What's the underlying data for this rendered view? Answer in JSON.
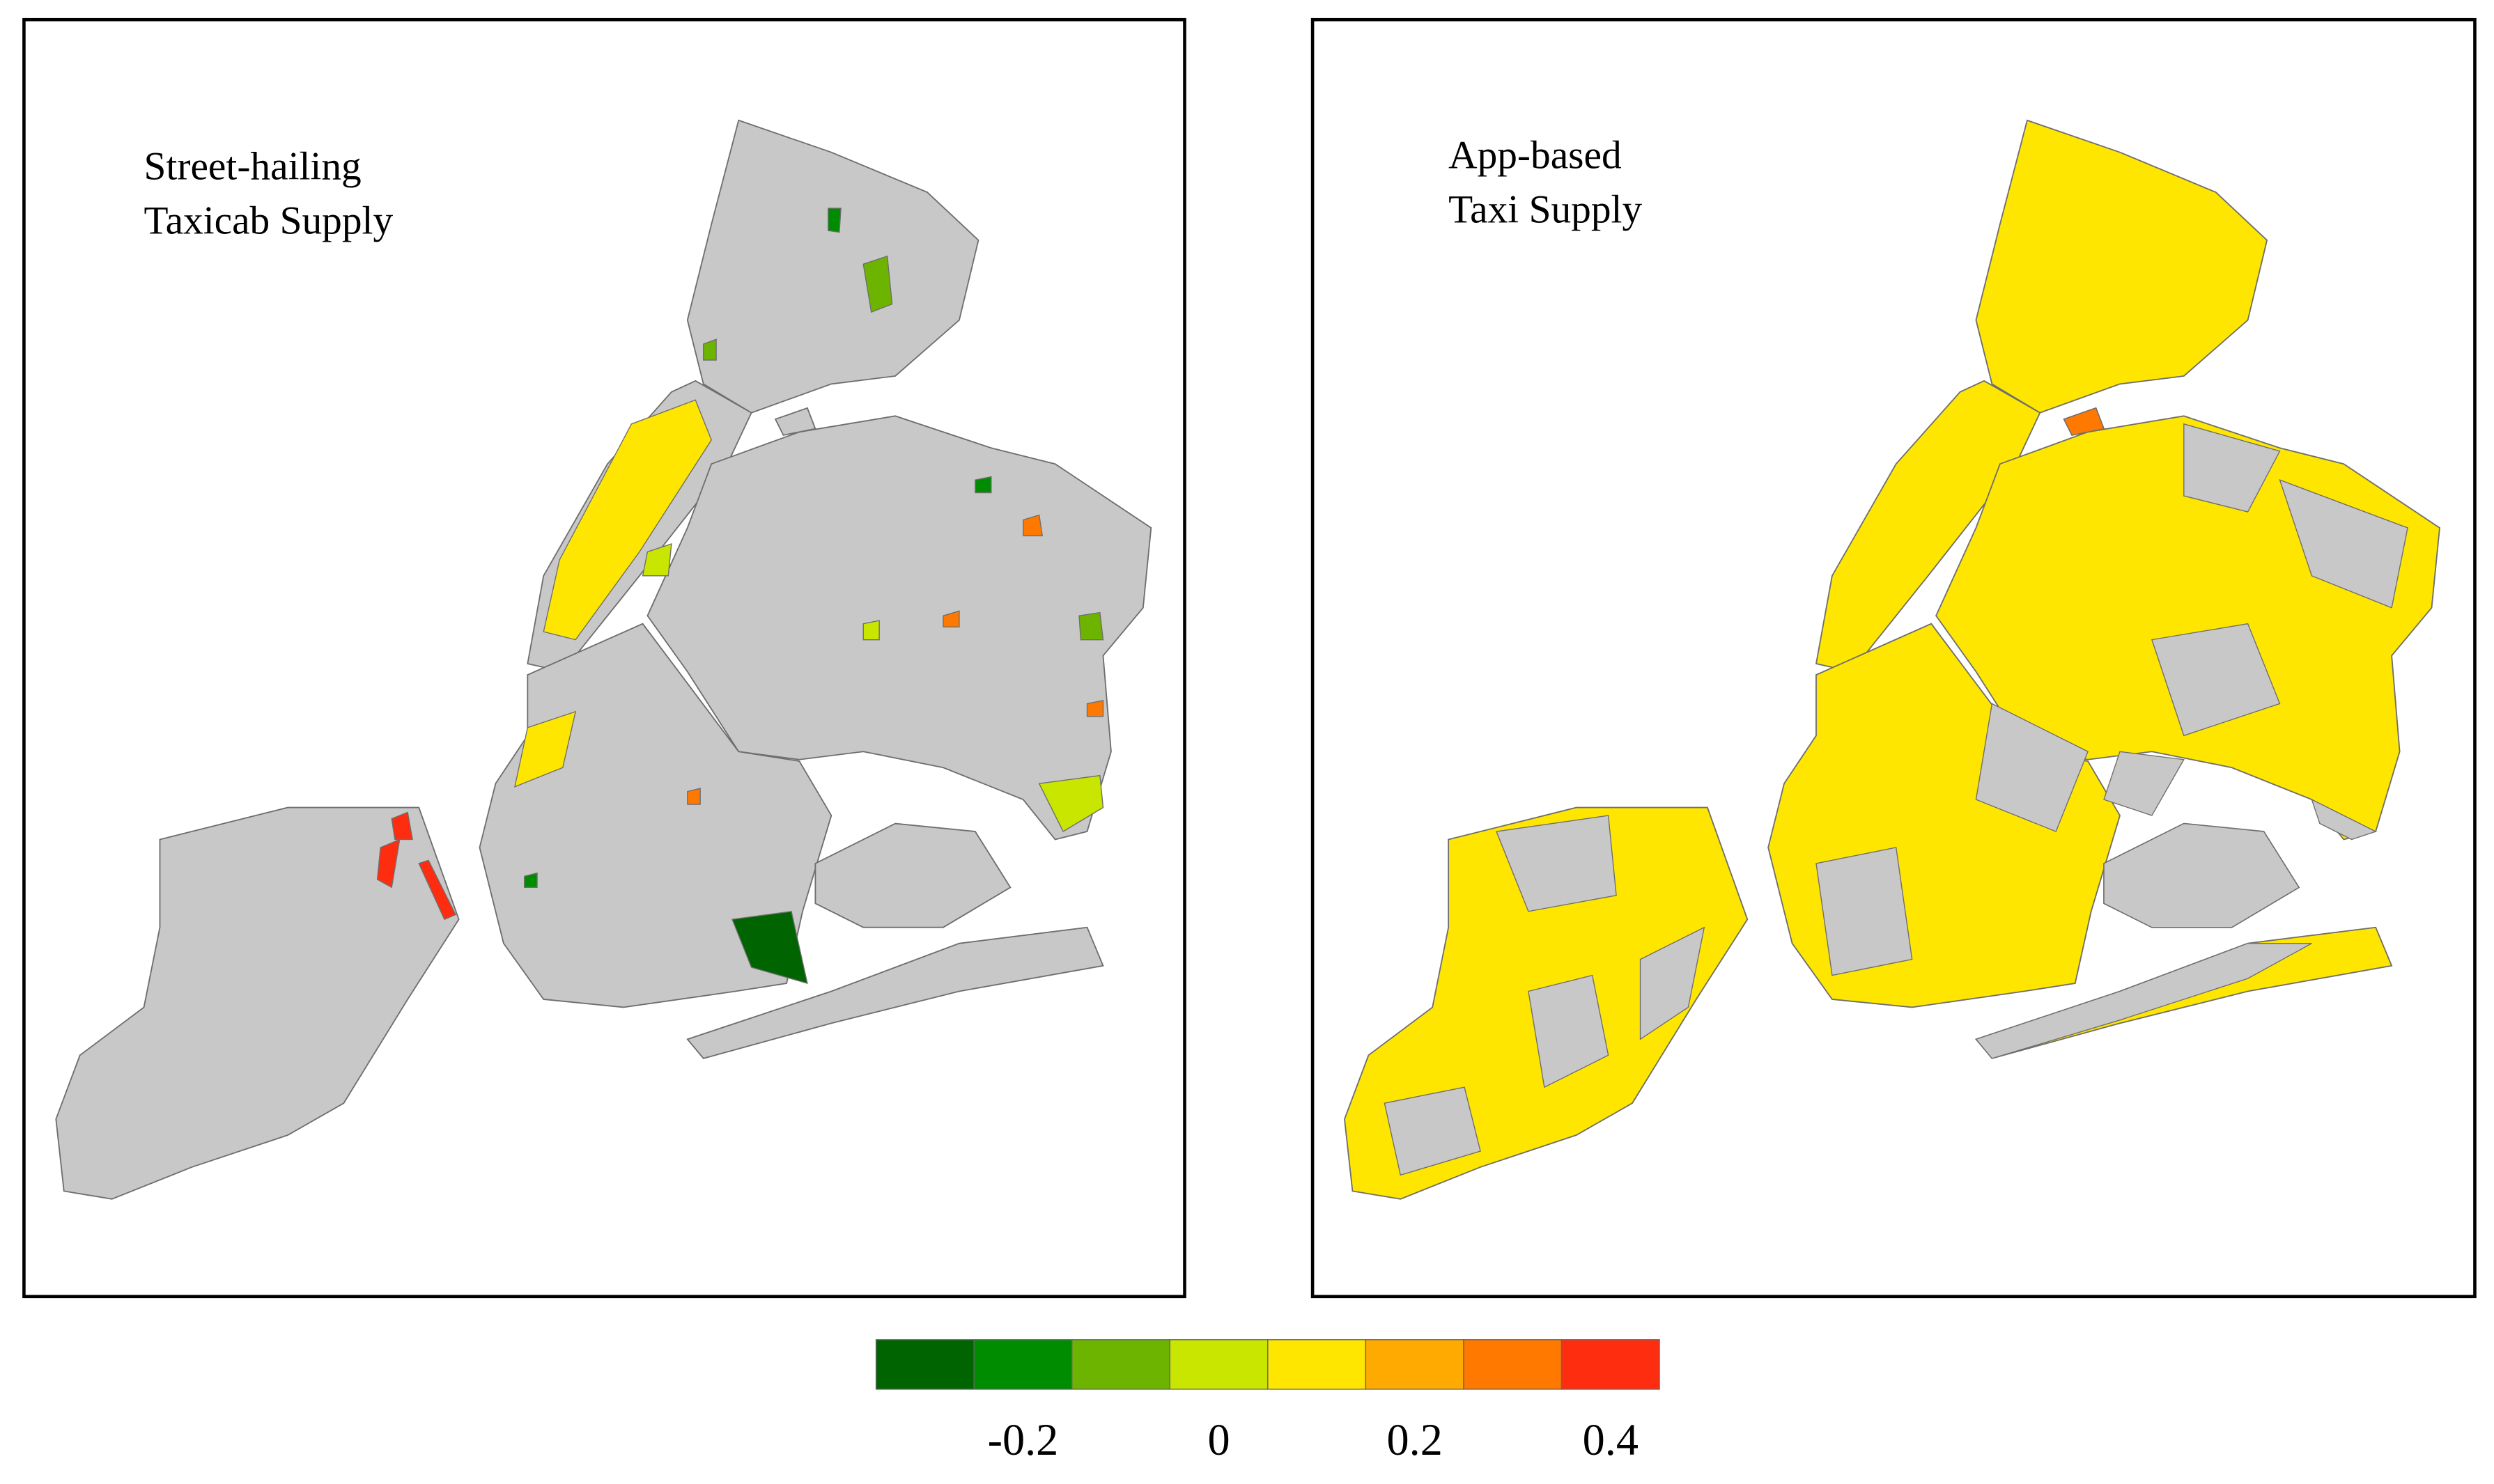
{
  "panels": [
    {
      "title": [
        "Street-hailing",
        "Taxicab Supply"
      ]
    },
    {
      "title": [
        "App-based",
        "Taxi Supply"
      ]
    }
  ],
  "colorbar": {
    "colors": [
      "#006400",
      "#008c00",
      "#6cb400",
      "#c8e600",
      "#ffe600",
      "#ffaa00",
      "#ff7800",
      "#ff2d0f"
    ],
    "lim": [
      -0.35,
      0.45
    ],
    "ticks": [
      -0.2,
      0,
      0.2,
      0.4
    ]
  }
}
